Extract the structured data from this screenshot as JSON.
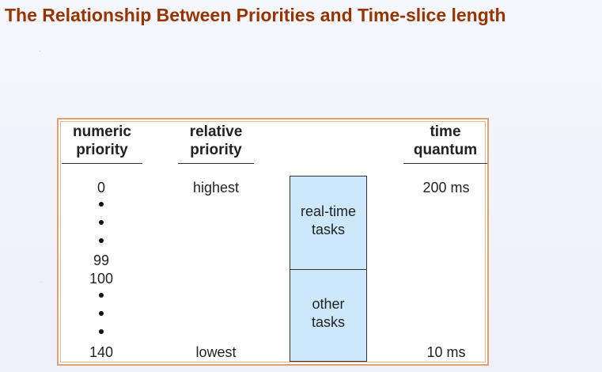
{
  "title": "The Relationship Between Priorities and Time-slice length",
  "table": {
    "headers": {
      "numeric_priority": [
        "numeric",
        "priority"
      ],
      "relative_priority": [
        "relative",
        "priority"
      ],
      "time_quantum": [
        "time",
        "quantum"
      ]
    },
    "numeric_values": [
      "0",
      "99",
      "100",
      "140"
    ],
    "relative_values": {
      "highest": "highest",
      "lowest": "lowest"
    },
    "quantum_values": {
      "max": "200 ms",
      "min": "10 ms"
    },
    "task_groups": [
      {
        "lines": [
          "real-time",
          "tasks"
        ]
      },
      {
        "lines": [
          "other",
          "tasks"
        ]
      }
    ]
  },
  "colors": {
    "title": "#993300",
    "frame_border": "#e0a070",
    "task_fill": "#cce8fa"
  }
}
